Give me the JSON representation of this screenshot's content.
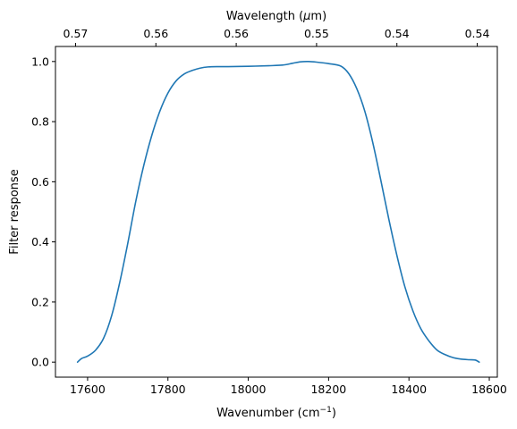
{
  "chart_data": {
    "type": "line",
    "xlabel": "Wavenumber (cm",
    "xlabel_unit_superscript": "−1",
    "xlabel_close": ")",
    "ylabel": "Filter response",
    "top_xlabel": "Wavelength (",
    "top_xlabel_unit": "μ",
    "top_xlabel_unit_rest": "m)",
    "xlim": [
      17520,
      18620
    ],
    "ylim": [
      -0.05,
      1.05
    ],
    "grid": false,
    "line_color": "#1f77b4",
    "x_ticks": [
      {
        "value": 17600,
        "label": "17600"
      },
      {
        "value": 17800,
        "label": "17800"
      },
      {
        "value": 18000,
        "label": "18000"
      },
      {
        "value": 18200,
        "label": "18200"
      },
      {
        "value": 18400,
        "label": "18400"
      },
      {
        "value": 18600,
        "label": "18600"
      }
    ],
    "y_ticks": [
      {
        "value": 0.0,
        "label": "0.0"
      },
      {
        "value": 0.2,
        "label": "0.2"
      },
      {
        "value": 0.4,
        "label": "0.4"
      },
      {
        "value": 0.6,
        "label": "0.6"
      },
      {
        "value": 0.8,
        "label": "0.8"
      },
      {
        "value": 1.0,
        "label": "1.0"
      }
    ],
    "top_ticks": [
      {
        "value": 17570,
        "label": "0.57"
      },
      {
        "value": 17770,
        "label": "0.56"
      },
      {
        "value": 17970,
        "label": "0.56"
      },
      {
        "value": 18170,
        "label": "0.55"
      },
      {
        "value": 18370,
        "label": "0.54"
      },
      {
        "value": 18570,
        "label": "0.54"
      }
    ],
    "series": [
      {
        "x": [
          17575,
          17585,
          17600,
          17620,
          17640,
          17660,
          17680,
          17700,
          17720,
          17740,
          17760,
          17780,
          17800,
          17820,
          17840,
          17860,
          17880,
          17900,
          17925,
          17950,
          18000,
          18050,
          18085,
          18110,
          18130,
          18150,
          18170,
          18200,
          18230,
          18250,
          18270,
          18290,
          18310,
          18330,
          18350,
          18370,
          18390,
          18410,
          18430,
          18450,
          18470,
          18490,
          18510,
          18530,
          18550,
          18565,
          18575
        ],
        "y": [
          0.0,
          0.012,
          0.02,
          0.04,
          0.08,
          0.155,
          0.265,
          0.395,
          0.535,
          0.655,
          0.755,
          0.835,
          0.895,
          0.935,
          0.958,
          0.97,
          0.978,
          0.982,
          0.983,
          0.983,
          0.984,
          0.986,
          0.988,
          0.994,
          0.999,
          1.0,
          0.998,
          0.993,
          0.985,
          0.96,
          0.91,
          0.835,
          0.73,
          0.605,
          0.475,
          0.355,
          0.25,
          0.17,
          0.11,
          0.07,
          0.04,
          0.025,
          0.015,
          0.01,
          0.008,
          0.007,
          0.0
        ]
      }
    ]
  }
}
